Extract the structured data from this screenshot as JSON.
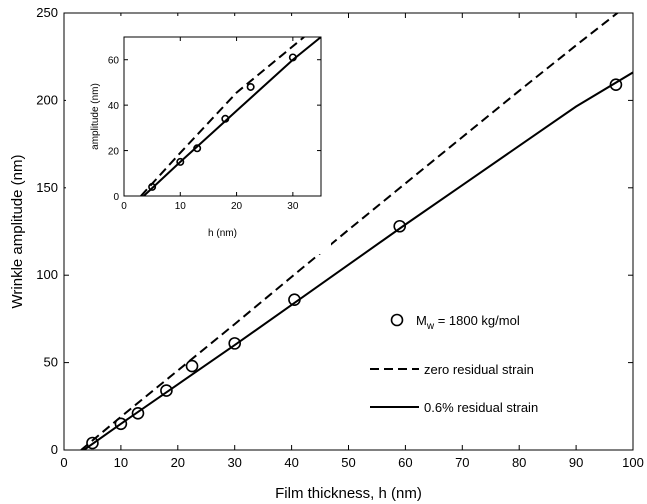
{
  "chart_data": [
    {
      "type": "scatter",
      "title": "",
      "xlabel": "Film thickness, h (nm)",
      "ylabel": "Wrinkle amplitude  (nm)",
      "xlim": [
        0,
        100
      ],
      "ylim": [
        0,
        250
      ],
      "xticks": [
        "0",
        "10",
        "20",
        "30",
        "40",
        "50",
        "60",
        "70",
        "80",
        "90",
        "100"
      ],
      "yticks": [
        "0",
        "50",
        "100",
        "150",
        "200",
        "250"
      ],
      "grid": false,
      "legend_placement": "right",
      "series": [
        {
          "name": "Mw = 1800 kg/mol",
          "legend_main": "M",
          "legend_sub": "w",
          "legend_rest": " = 1800 kg/mol",
          "type": "scatter",
          "marker": "open-circle",
          "x": [
            5,
            10,
            13,
            18,
            22.5,
            30,
            40.5,
            59,
            97
          ],
          "y": [
            4,
            15,
            21,
            34,
            48,
            61,
            86,
            128,
            209
          ]
        },
        {
          "name": "zero residual strain",
          "type": "line",
          "style": "dashed",
          "x": [
            3,
            10,
            20,
            30,
            40,
            50,
            60,
            70,
            80,
            90,
            100
          ],
          "y": [
            0,
            19,
            45.5,
            72,
            99,
            126,
            152.5,
            179,
            205.5,
            231.5,
            257
          ]
        },
        {
          "name": "0.6% residual strain",
          "type": "line",
          "style": "solid",
          "x": [
            3.5,
            10,
            20,
            30,
            40,
            50,
            60,
            70,
            80,
            90,
            100
          ],
          "y": [
            0,
            15,
            37.5,
            60,
            83,
            106,
            129,
            151.5,
            174,
            196.5,
            216
          ]
        }
      ]
    },
    {
      "type": "scatter",
      "title": "",
      "xlabel": "h (nm)",
      "ylabel": "amplitude  (nm)",
      "xlim": [
        0,
        35
      ],
      "ylim": [
        0,
        70
      ],
      "xticks": [
        "0",
        "10",
        "20",
        "30"
      ],
      "yticks": [
        "0",
        "20",
        "40",
        "60"
      ],
      "grid": false,
      "series": [
        {
          "type": "scatter",
          "marker": "open-circle",
          "x": [
            5,
            10,
            13,
            18,
            22.5,
            30
          ],
          "y": [
            4,
            15,
            21,
            34,
            48,
            61
          ]
        },
        {
          "type": "line",
          "style": "dashed",
          "x": [
            3,
            10,
            20,
            32
          ],
          "y": [
            0,
            19,
            45.5,
            70
          ]
        },
        {
          "type": "line",
          "style": "solid",
          "x": [
            3.5,
            10,
            20,
            30,
            35
          ],
          "y": [
            0,
            15,
            37.5,
            60,
            70
          ]
        }
      ]
    }
  ]
}
